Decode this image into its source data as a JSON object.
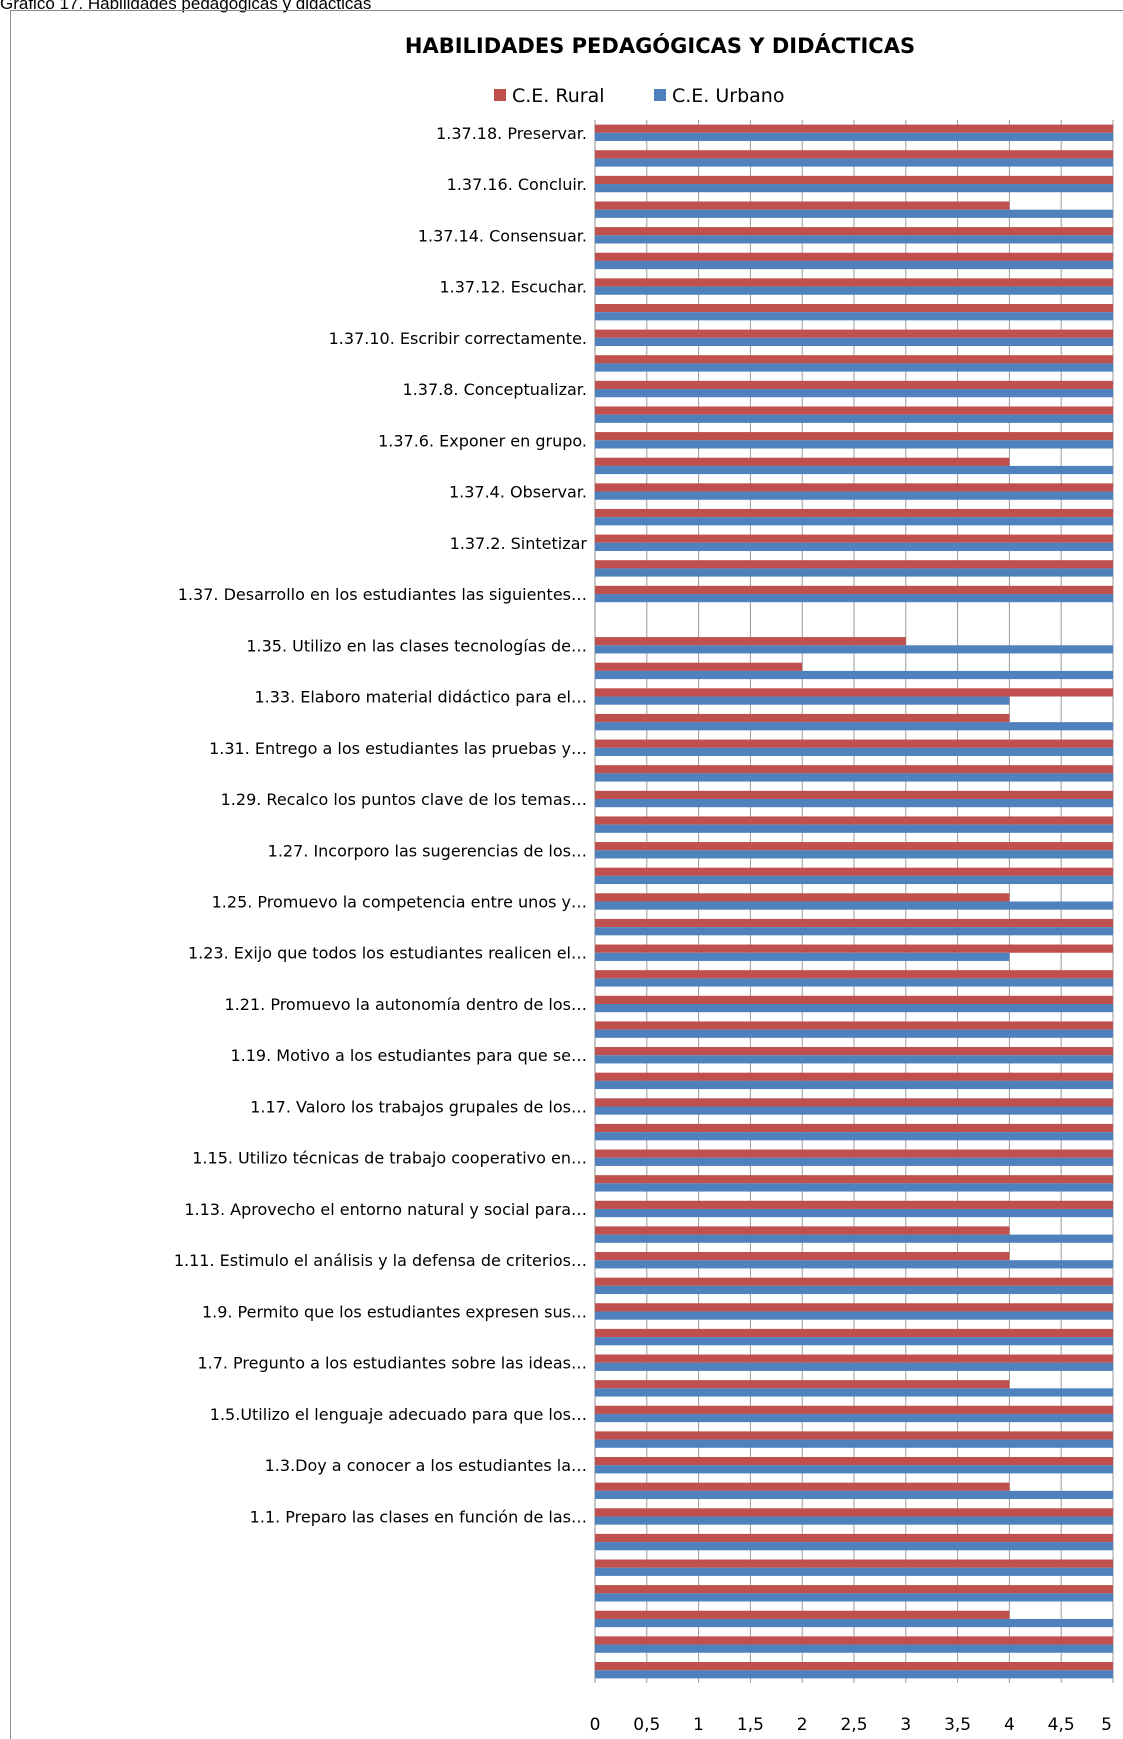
{
  "caption": "Grafico 17. Habilidades pedagógicas y didácticas",
  "chart_data": {
    "type": "bar",
    "orientation": "horizontal",
    "title": "HABILIDADES PEDAGÓGICAS Y DIDÁCTICAS",
    "xlim": [
      0,
      5
    ],
    "x_ticks": [
      "0",
      "0,5",
      "1",
      "1,5",
      "2",
      "2,5",
      "3",
      "3,5",
      "4",
      "4,5",
      "5"
    ],
    "grid": true,
    "legend_position": "top",
    "labeled_categories": [
      "1.37.18.  Preservar.",
      "1.37.16.  Concluir.",
      "1.37.14.  Consensuar.",
      "1.37.12.  Escuchar.",
      "1.37.10.  Escribir correctamente.",
      "1.37.8.    Conceptualizar.",
      "1.37.6.    Exponer en grupo.",
      "1.37.4.    Observar.",
      "1.37.2.    Sintetizar",
      "1.37.  Desarrollo en los estudiantes las siguientes…",
      "1.35.  Utilizo en las clases tecnologías de…",
      "1.33.  Elaboro material didáctico para el…",
      "1.31.  Entrego a los estudiantes las pruebas y…",
      "1.29.  Recalco los puntos clave de los temas…",
      "1.27.  Incorporo las sugerencias de los…",
      "1.25.  Promuevo la competencia entre unos y…",
      "1.23.  Exijo que todos los estudiantes realicen el…",
      "1.21.  Promuevo la autonomía dentro de los…",
      "1.19.  Motivo  a los estudiantes para que se…",
      "1.17.  Valoro los trabajos grupales de los…",
      "1.15.  Utilizo técnicas de trabajo cooperativo en…",
      "1.13.  Aprovecho el entorno natural y social para…",
      "1.11.  Estimulo el análisis y la defensa de criterios…",
      "1.9.  Permito que los estudiantes expresen sus…",
      "1.7.  Pregunto a los estudiantes sobre las ideas…",
      "1.5.Utilizo el lenguaje adecuado para que los…",
      "1.3.Doy a conocer a los estudiantes la…",
      "1.1. Preparo las clases en función de las…"
    ],
    "series": [
      {
        "name": "C.E. Rural",
        "color": "#c0504d",
        "values": [
          5,
          5,
          5,
          4,
          5,
          5,
          5,
          5,
          5,
          5,
          5,
          5,
          5,
          4,
          5,
          5,
          5,
          5,
          5,
          0,
          3,
          2,
          5,
          4,
          5,
          5,
          5,
          5,
          5,
          5,
          4,
          5,
          5,
          5,
          5,
          5,
          5,
          5,
          5,
          5,
          5,
          5,
          5,
          4,
          4,
          5,
          5,
          5,
          5,
          4,
          5,
          5,
          5,
          4,
          5,
          5,
          5,
          5,
          4,
          5,
          5
        ]
      },
      {
        "name": "C.E. Urbano",
        "color": "#4f81bd",
        "values": [
          5,
          5,
          5,
          5,
          5,
          5,
          5,
          5,
          5,
          5,
          5,
          5,
          5,
          5,
          5,
          5,
          5,
          5,
          5,
          0,
          5,
          5,
          4,
          5,
          5,
          5,
          5,
          5,
          5,
          5,
          5,
          5,
          4,
          5,
          5,
          5,
          5,
          5,
          5,
          5,
          5,
          5,
          5,
          5,
          5,
          5,
          5,
          5,
          5,
          5,
          5,
          5,
          5,
          5,
          5,
          5,
          5,
          5,
          5,
          5,
          5
        ]
      }
    ]
  }
}
